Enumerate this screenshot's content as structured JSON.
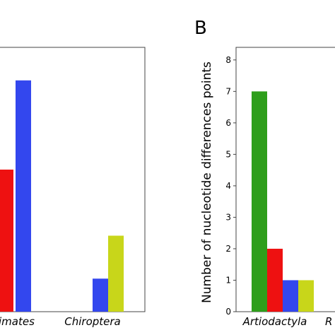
{
  "chart_data": [
    {
      "type": "bar",
      "panel_label": "",
      "categories": [
        "Primates",
        "Chiroptera"
      ],
      "category_display": [
        "imates",
        "Chiroptera"
      ],
      "series": [
        {
          "color": "#ee1111",
          "values": [
            4.3,
            0
          ]
        },
        {
          "color": "#3347ee",
          "values": [
            7.0,
            1.0
          ]
        },
        {
          "color": "#c8d61a",
          "values": [
            0,
            2.3
          ]
        }
      ],
      "ylim": [
        0,
        8
      ],
      "ylabel": "",
      "xlabel": "",
      "title": ""
    },
    {
      "type": "bar",
      "panel_label": "B",
      "categories": [
        "Artiodactyla",
        "R"
      ],
      "series": [
        {
          "color": "#2e9e1b",
          "values": [
            7,
            0
          ]
        },
        {
          "color": "#ee1111",
          "values": [
            2,
            0
          ]
        },
        {
          "color": "#3347ee",
          "values": [
            1,
            0
          ]
        },
        {
          "color": "#c8d61a",
          "values": [
            1,
            0
          ]
        }
      ],
      "yticks": [
        "0",
        "1",
        "2",
        "3",
        "4",
        "5",
        "6",
        "7",
        "8"
      ],
      "ylim": [
        0,
        8.4
      ],
      "ylabel": "Number of nucleotide differences points",
      "xlabel": "",
      "title": ""
    }
  ]
}
